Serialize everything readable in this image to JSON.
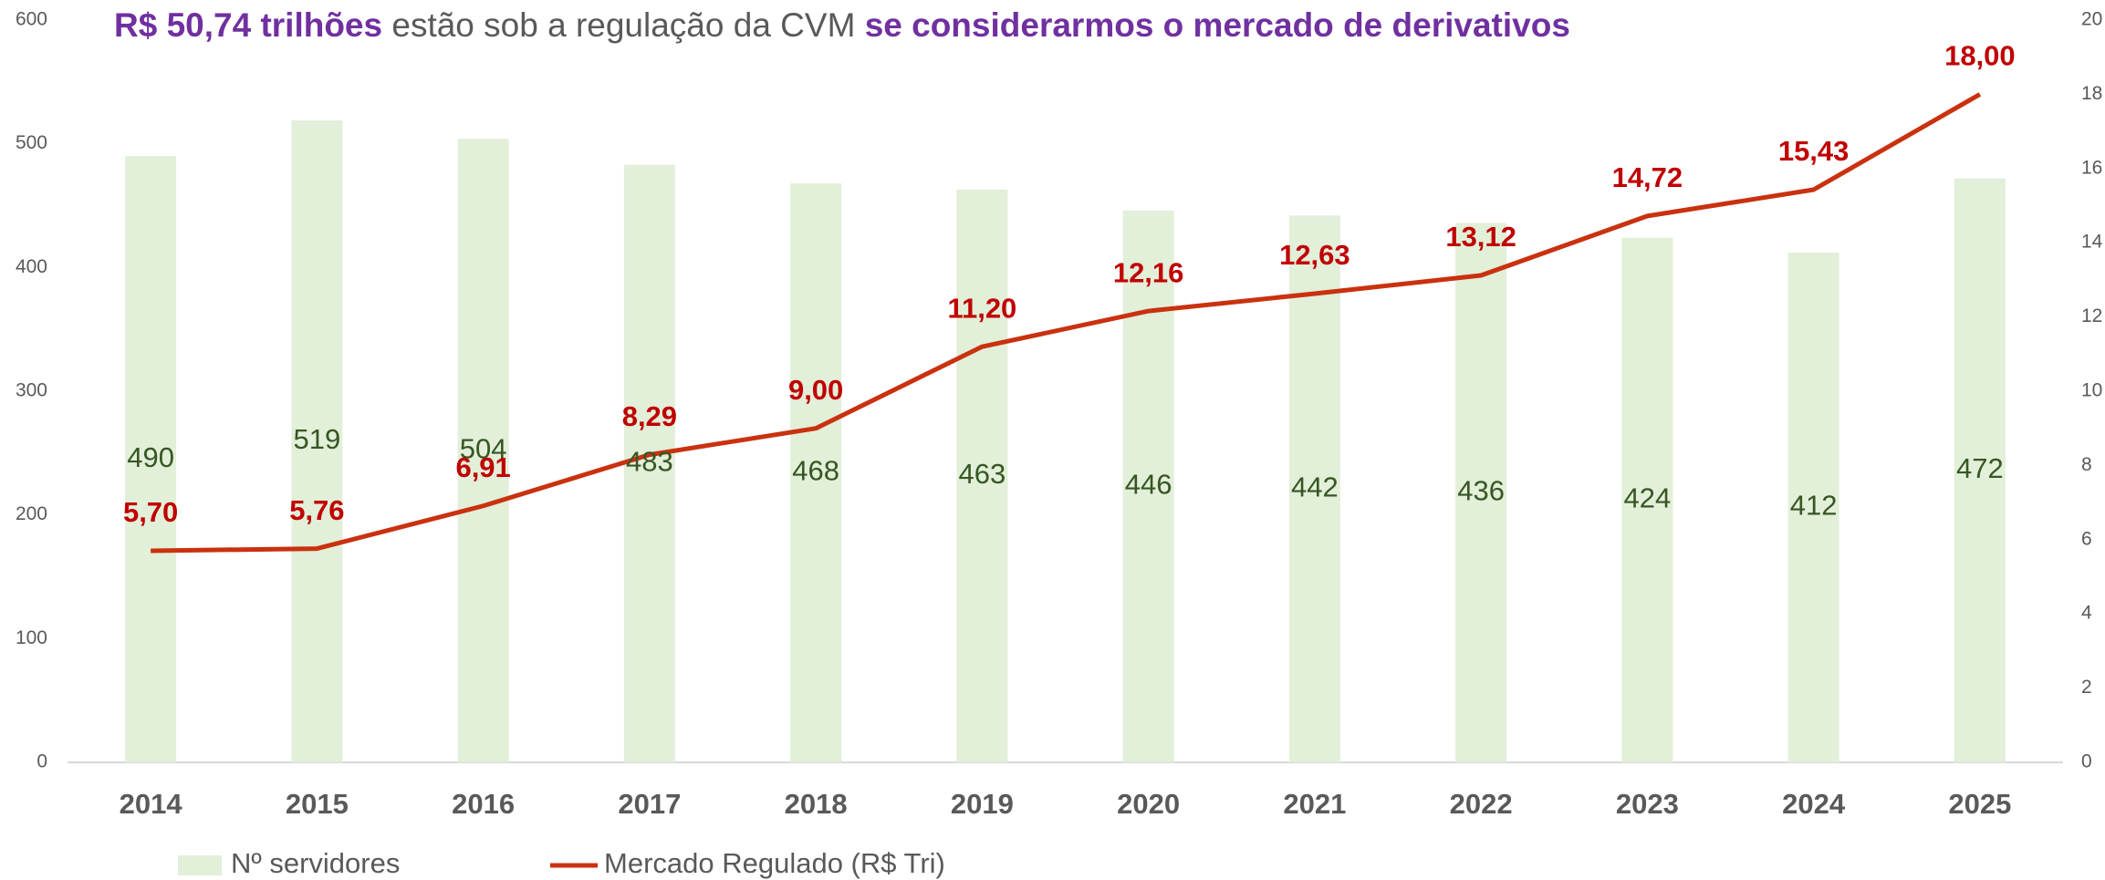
{
  "chart_data": {
    "type": "bar_line",
    "title_parts": [
      {
        "text": "R$ 50,74 trilhões",
        "color": "#7030a0",
        "bold": true
      },
      {
        "text": " estão sob a regulação da CVM ",
        "color": "#595959",
        "bold": false
      },
      {
        "text": "se considerarmos o mercado de derivativos",
        "color": "#7030a0",
        "bold": true
      }
    ],
    "categories": [
      "2014",
      "2015",
      "2016",
      "2017",
      "2018",
      "2019",
      "2020",
      "2021",
      "2022",
      "2023",
      "2024",
      "2025"
    ],
    "series": [
      {
        "name": "Nº servidores",
        "type": "bar",
        "color": "#e2efd9",
        "label_color": "#375623",
        "values": [
          490,
          519,
          504,
          483,
          468,
          463,
          446,
          442,
          436,
          424,
          412,
          472
        ]
      },
      {
        "name": "Mercado Regulado (R$ Tri)",
        "type": "line",
        "axis": "y2",
        "color": "#c9310f",
        "label_color": "#c00000",
        "values": [
          5.7,
          5.76,
          6.91,
          8.29,
          9.0,
          11.2,
          12.16,
          12.63,
          13.12,
          14.72,
          15.43,
          18.0
        ],
        "value_labels": [
          "5,70",
          "5,76",
          "6,91",
          "8,29",
          "9,00",
          "11,20",
          "12,16",
          "12,63",
          "13,12",
          "14,72",
          "15,43",
          "18,00"
        ]
      }
    ],
    "ylim": [
      0,
      600
    ],
    "yticks": [
      0,
      100,
      200,
      300,
      400,
      500,
      600
    ],
    "y2lim": [
      0,
      20
    ],
    "y2ticks": [
      0,
      2,
      4,
      6,
      8,
      10,
      12,
      14,
      16,
      18,
      20
    ]
  }
}
